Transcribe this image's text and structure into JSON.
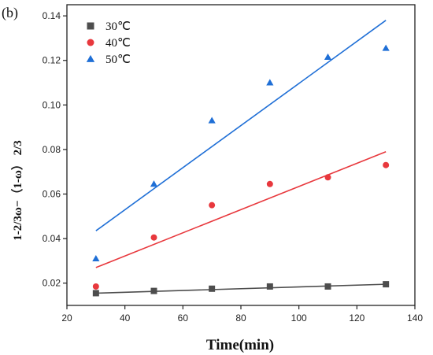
{
  "panel_label": "(b)",
  "chart_data": {
    "type": "scatter",
    "xlabel": "Time(min)",
    "ylabel": "1-2/3ω−（1-ω） 2/3",
    "xlim": [
      20,
      140
    ],
    "ylim": [
      0.01,
      0.145
    ],
    "xticks": [
      20,
      40,
      60,
      80,
      100,
      120,
      140
    ],
    "yticks": [
      0.02,
      0.04,
      0.06,
      0.08,
      0.1,
      0.12,
      0.14
    ],
    "ytick_labels": [
      "0.02",
      "0.04",
      "0.06",
      "0.08",
      "0.10",
      "0.12",
      "0.14"
    ],
    "grid": false,
    "legend_position": "top-left",
    "series": [
      {
        "name": "30℃",
        "marker": "square",
        "color": "#4d4d4d",
        "x": [
          30,
          50,
          70,
          90,
          110,
          130
        ],
        "y": [
          0.0155,
          0.0165,
          0.0175,
          0.0185,
          0.0185,
          0.0195
        ],
        "fit": [
          [
            30,
            0.0155
          ],
          [
            130,
            0.0195
          ]
        ]
      },
      {
        "name": "40℃",
        "marker": "circle",
        "color": "#e8383d",
        "x": [
          30,
          50,
          70,
          90,
          110,
          130
        ],
        "y": [
          0.0185,
          0.0405,
          0.055,
          0.0645,
          0.0675,
          0.073
        ],
        "fit": [
          [
            30,
            0.027
          ],
          [
            130,
            0.079
          ]
        ]
      },
      {
        "name": "50℃",
        "marker": "triangle",
        "color": "#1f6fd6",
        "x": [
          30,
          50,
          70,
          90,
          110,
          130
        ],
        "y": [
          0.031,
          0.0645,
          0.093,
          0.11,
          0.1215,
          0.1255
        ],
        "fit": [
          [
            30,
            0.0435
          ],
          [
            130,
            0.138
          ]
        ]
      }
    ]
  }
}
